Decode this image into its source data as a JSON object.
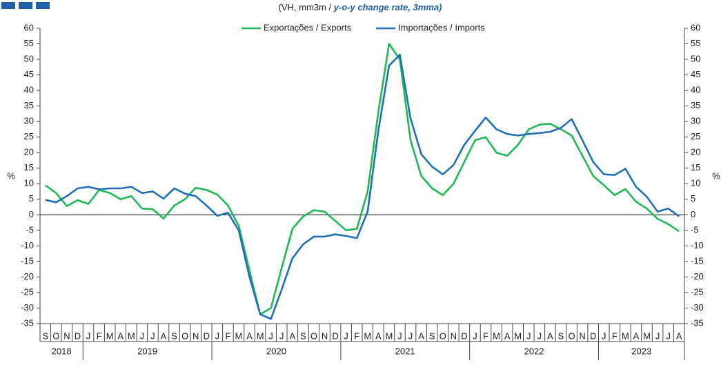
{
  "chart_data": {
    "type": "line",
    "title_parts": [
      "(VH, mm3m  / ",
      "y-o-y change rate, 3mma)"
    ],
    "y_label": "%",
    "y2_label": "%",
    "categories": [
      "S",
      "O",
      "N",
      "D",
      "J",
      "F",
      "M",
      "A",
      "M",
      "J",
      "J",
      "A",
      "S",
      "O",
      "N",
      "D",
      "J",
      "F",
      "M",
      "A",
      "M",
      "J",
      "J",
      "A",
      "S",
      "O",
      "N",
      "D",
      "J",
      "F",
      "M",
      "A",
      "M",
      "J",
      "J",
      "A",
      "S",
      "O",
      "N",
      "D",
      "J",
      "F",
      "M",
      "A",
      "M",
      "J",
      "J",
      "A",
      "S",
      "O",
      "N",
      "D",
      "J",
      "F",
      "M",
      "A",
      "M",
      "J",
      "J",
      "A"
    ],
    "years": [
      "2018",
      "2019",
      "2020",
      "2021",
      "2022",
      "2023"
    ],
    "series": [
      {
        "name": "Exportações / Exports",
        "color": "#1db954",
        "values": [
          9.5,
          7,
          2.8,
          4.7,
          3.5,
          8,
          7,
          5,
          6,
          2,
          1.8,
          -1.2,
          3,
          5,
          8.7,
          8,
          6.5,
          3,
          -3.5,
          -18,
          -32,
          -30,
          -17,
          -4.5,
          -0.5,
          1.5,
          1,
          -2,
          -5,
          -4.5,
          7.5,
          33,
          55,
          50,
          24,
          12.5,
          8.5,
          6.3,
          10,
          17,
          24,
          25,
          20,
          19,
          22.5,
          27.5,
          29,
          29.3,
          27.5,
          25.5,
          19,
          12.5,
          9.5,
          6.3,
          8.3,
          4.2,
          2,
          -1.3,
          -3,
          -5.3
        ]
      },
      {
        "name": "Importações / Imports",
        "color": "#1f6fb8",
        "values": [
          4.8,
          4,
          6,
          8.5,
          9,
          8.2,
          8.5,
          8.5,
          9,
          7,
          7.5,
          5.2,
          8.5,
          6.8,
          6,
          3,
          -0.3,
          0.7,
          -5,
          -20,
          -32,
          -33.5,
          -24,
          -14,
          -9.5,
          -7,
          -7,
          -6.3,
          -6.8,
          -7.5,
          1,
          27,
          48,
          51.5,
          31,
          19.5,
          15.5,
          13,
          16,
          22.5,
          27,
          31.3,
          27.5,
          26,
          25.5,
          26,
          26.3,
          26.7,
          28,
          30.8,
          24,
          17,
          13,
          12.8,
          14.8,
          9,
          5.8,
          1,
          2,
          -0.5
        ]
      }
    ],
    "ylim": [
      -35,
      60
    ],
    "yticks": [
      -35,
      -30,
      -25,
      -20,
      -15,
      -10,
      -5,
      0,
      5,
      10,
      15,
      20,
      25,
      30,
      35,
      40,
      45,
      50,
      55,
      60
    ],
    "y2lim": [
      -35,
      60
    ],
    "y2ticks": [
      -35,
      -30,
      -25,
      -20,
      -15,
      -10,
      -5,
      0,
      5,
      10,
      15,
      20,
      25,
      30,
      35,
      40,
      45,
      50,
      55,
      60
    ]
  }
}
